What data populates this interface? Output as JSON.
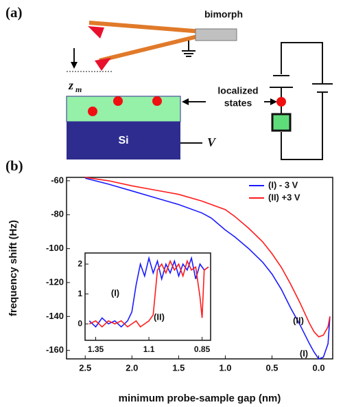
{
  "panel_a": {
    "label": "(a)",
    "bimorph": "bimorph",
    "zm_symbol": "z",
    "zm_subscript": "m",
    "localized_states": [
      "localized",
      "states"
    ],
    "substrate": "Si",
    "voltage": "V"
  },
  "panel_b": {
    "label": "(b)"
  },
  "chart_data": [
    {
      "type": "line",
      "xlabel": "minimum probe-sample gap (nm)",
      "ylabel": "frequency shift (Hz)",
      "x": [
        2.5,
        2.25,
        2.0,
        1.75,
        1.5,
        1.25,
        1.15,
        1.0,
        0.9,
        0.75,
        0.6,
        0.5,
        0.4,
        0.3,
        0.2,
        0.1,
        0.05,
        0.0,
        -0.05,
        -0.1,
        -0.12
      ],
      "series": [
        {
          "name": "(I)  - 3 V",
          "color": "#1a1aff",
          "values": [
            -58.5,
            -62,
            -66,
            -70,
            -74,
            -79,
            -82,
            -89,
            -93,
            -100,
            -108,
            -115,
            -124,
            -135,
            -145,
            -156,
            -161,
            -165,
            -164,
            -156,
            -140
          ]
        },
        {
          "name": "(II) +3 V",
          "color": "#ff1a1a",
          "values": [
            -58,
            -60,
            -63,
            -65.5,
            -68,
            -72,
            -74,
            -77,
            -81,
            -88,
            -96,
            -103,
            -111,
            -121,
            -132,
            -144,
            -149,
            -152,
            -151,
            -146,
            -140
          ]
        }
      ],
      "xlim": [
        2.7,
        -0.15
      ],
      "ylim": [
        -165,
        -58
      ],
      "xticks": [
        2.5,
        {
          "value": 2,
          "label": "2.0"
        },
        1.5,
        {
          "value": 1,
          "label": "1.0"
        },
        0.5,
        {
          "value": 0,
          "label": "0.0"
        }
      ],
      "yticks": [
        -60,
        -80,
        -100,
        -120,
        -140,
        -160
      ],
      "legend": "upper right",
      "annotations": [
        "(I)",
        "(II)"
      ]
    },
    {
      "type": "line",
      "x": [
        1.38,
        1.35,
        1.32,
        1.29,
        1.26,
        1.23,
        1.2,
        1.18,
        1.16,
        1.14,
        1.12,
        1.1,
        1.08,
        1.06,
        1.04,
        1.02,
        1.0,
        0.98,
        0.96,
        0.94,
        0.92,
        0.9,
        0.88,
        0.86,
        0.85,
        0.84,
        0.82
      ],
      "series": [
        {
          "color": "#1a1aff",
          "values": [
            0.1,
            -0.1,
            0.2,
            0,
            0.1,
            -0.1,
            0.1,
            0.4,
            1.3,
            2.0,
            1.6,
            2.2,
            1.7,
            2.1,
            1.5,
            2.0,
            1.7,
            2.1,
            1.6,
            2.0,
            1.8,
            2.2,
            1.5,
            2.0,
            1.9,
            1.8,
            1.9
          ]
        },
        {
          "color": "#ff1a1a",
          "values": [
            0,
            0.1,
            -0.1,
            0.1,
            0,
            0.1,
            -0.1,
            0,
            0.1,
            -0.1,
            0,
            0.1,
            0.3,
            1.8,
            2.0,
            1.7,
            2.1,
            1.8,
            2.0,
            1.6,
            2.1,
            1.8,
            1.9,
            0.9,
            0.2,
            1.8,
            1.9
          ]
        }
      ],
      "xlim": [
        1.4,
        0.81
      ],
      "ylim": [
        -0.55,
        2.37
      ],
      "xticks": [
        1.35,
        1.1,
        0.85
      ],
      "yticks": [
        0,
        1,
        2
      ],
      "annotations": [
        "(I)",
        "(II)"
      ]
    }
  ]
}
